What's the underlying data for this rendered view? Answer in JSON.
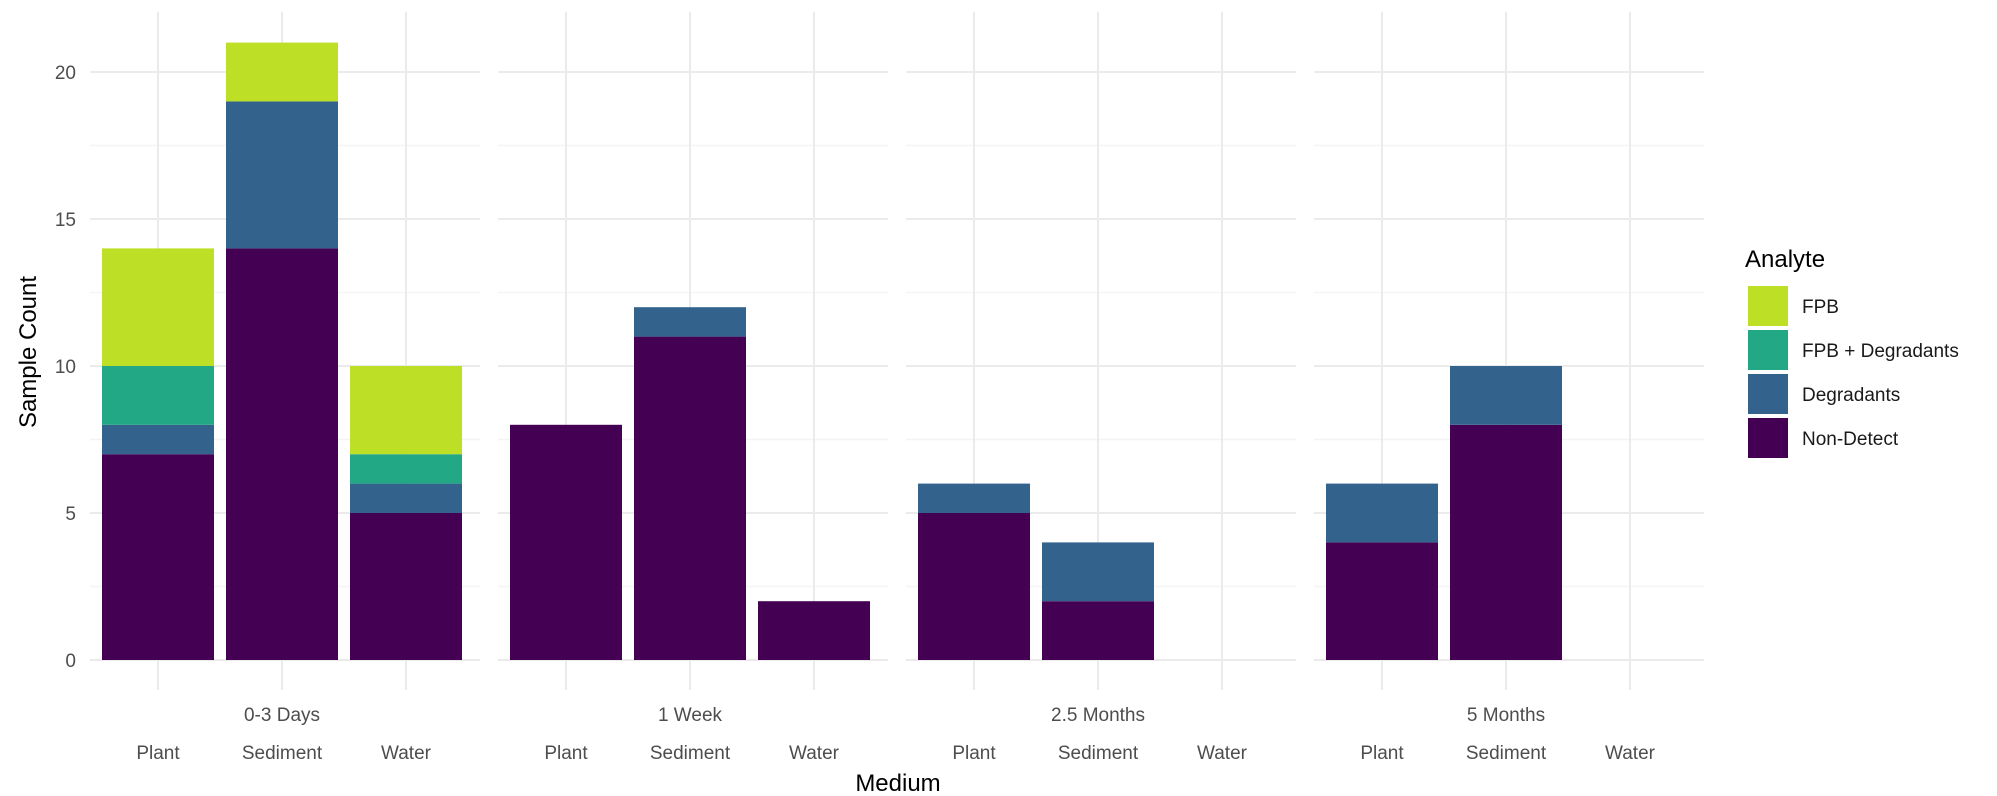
{
  "chart_data": {
    "type": "bar",
    "stacked": true,
    "facet_by": "time",
    "xlabel": "Medium",
    "ylabel": "Sample Count",
    "ylim": [
      0,
      22
    ],
    "y_ticks": [
      0,
      5,
      10,
      15,
      20
    ],
    "grid": true,
    "legend": {
      "title": "Analyte",
      "position": "right",
      "entries": [
        "FPB",
        "FPB + Degradants",
        "Degradants",
        "Non-Detect"
      ]
    },
    "categories": [
      "Plant",
      "Sediment",
      "Water"
    ],
    "stack_order": [
      "Non-Detect",
      "Degradants",
      "FPB + Degradants",
      "FPB"
    ],
    "colors": {
      "FPB": "#bddf26",
      "FPB + Degradants": "#22a884",
      "Degradants": "#33638d",
      "Non-Detect": "#440154"
    },
    "panels": [
      {
        "label": "0-3 Days",
        "series": [
          {
            "name": "Non-Detect",
            "values": [
              7,
              14,
              5
            ]
          },
          {
            "name": "Degradants",
            "values": [
              1,
              5,
              1
            ]
          },
          {
            "name": "FPB + Degradants",
            "values": [
              2,
              0,
              1
            ]
          },
          {
            "name": "FPB",
            "values": [
              4,
              2,
              3
            ]
          }
        ]
      },
      {
        "label": "1 Week",
        "series": [
          {
            "name": "Non-Detect",
            "values": [
              8,
              11,
              2
            ]
          },
          {
            "name": "Degradants",
            "values": [
              0,
              1,
              0
            ]
          },
          {
            "name": "FPB + Degradants",
            "values": [
              0,
              0,
              0
            ]
          },
          {
            "name": "FPB",
            "values": [
              0,
              0,
              0
            ]
          }
        ]
      },
      {
        "label": "2.5 Months",
        "series": [
          {
            "name": "Non-Detect",
            "values": [
              5,
              2,
              0
            ]
          },
          {
            "name": "Degradants",
            "values": [
              1,
              2,
              0
            ]
          },
          {
            "name": "FPB + Degradants",
            "values": [
              0,
              0,
              0
            ]
          },
          {
            "name": "FPB",
            "values": [
              0,
              0,
              0
            ]
          }
        ]
      },
      {
        "label": "5 Months",
        "series": [
          {
            "name": "Non-Detect",
            "values": [
              4,
              8,
              0
            ]
          },
          {
            "name": "Degradants",
            "values": [
              2,
              2,
              0
            ]
          },
          {
            "name": "FPB + Degradants",
            "values": [
              0,
              0,
              0
            ]
          },
          {
            "name": "FPB",
            "values": [
              0,
              0,
              0
            ]
          }
        ]
      }
    ]
  }
}
